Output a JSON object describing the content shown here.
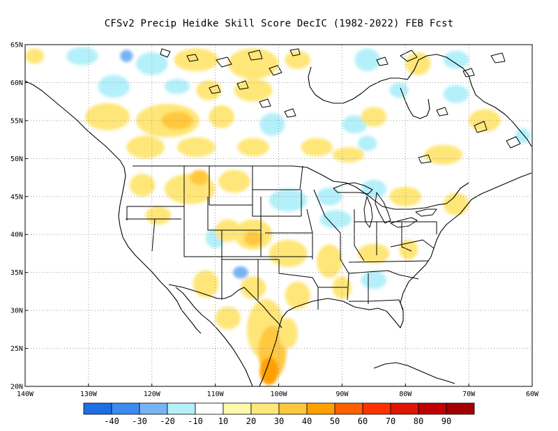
{
  "title": "CFSv2 Precip Heidke Skill Score DecIC (1982-2022) FEB Fcst",
  "map": {
    "lon_range": [
      -140,
      -60
    ],
    "lat_range": [
      20,
      65
    ],
    "lon_ticks": [
      {
        "v": -140,
        "label": "140W"
      },
      {
        "v": -130,
        "label": "130W"
      },
      {
        "v": -120,
        "label": "120W"
      },
      {
        "v": -110,
        "label": "110W"
      },
      {
        "v": -100,
        "label": "100W"
      },
      {
        "v": -90,
        "label": "90W"
      },
      {
        "v": -80,
        "label": "80W"
      },
      {
        "v": -70,
        "label": "70W"
      },
      {
        "v": -60,
        "label": "60W"
      }
    ],
    "lat_ticks": [
      {
        "v": 20,
        "label": "20N"
      },
      {
        "v": 25,
        "label": "25N"
      },
      {
        "v": 30,
        "label": "30N"
      },
      {
        "v": 35,
        "label": "35N"
      },
      {
        "v": 40,
        "label": "40N"
      },
      {
        "v": 45,
        "label": "45N"
      },
      {
        "v": 50,
        "label": "50N"
      },
      {
        "v": 55,
        "label": "55N"
      },
      {
        "v": 60,
        "label": "60N"
      },
      {
        "v": 65,
        "label": "65N"
      }
    ],
    "grid": true
  },
  "colorbar": {
    "colors": [
      "#1e6ee6",
      "#3c8cf0",
      "#78b4f5",
      "#b4f0fa",
      "#ffffff",
      "#fffaaa",
      "#ffe678",
      "#ffc83c",
      "#ffa000",
      "#ff6000",
      "#ff3200",
      "#e11400",
      "#c00000",
      "#a50000"
    ],
    "labels": [
      "-40",
      "-30",
      "-20",
      "-10",
      "10",
      "20",
      "30",
      "40",
      "50",
      "60",
      "70",
      "80",
      "90"
    ]
  },
  "regions": [
    {
      "lon": -138.5,
      "lat": 63.5,
      "rx": 1.5,
      "ry": 1.0,
      "score": 20
    },
    {
      "lon": -131,
      "lat": 63.5,
      "rx": 2.5,
      "ry": 1.2,
      "score": -10
    },
    {
      "lon": -124,
      "lat": 63.5,
      "rx": 1.0,
      "ry": 0.8,
      "score": -20
    },
    {
      "lon": -120,
      "lat": 62.5,
      "rx": 2.5,
      "ry": 1.5,
      "score": -10
    },
    {
      "lon": -113,
      "lat": 63,
      "rx": 3.5,
      "ry": 1.5,
      "score": 20
    },
    {
      "lon": -104,
      "lat": 62.5,
      "rx": 4,
      "ry": 2,
      "score": 20
    },
    {
      "lon": -97,
      "lat": 63,
      "rx": 2,
      "ry": 1.2,
      "score": 20
    },
    {
      "lon": -86,
      "lat": 63,
      "rx": 2,
      "ry": 1.5,
      "score": -10
    },
    {
      "lon": -78,
      "lat": 62.5,
      "rx": 2,
      "ry": 1.5,
      "score": 20
    },
    {
      "lon": -72,
      "lat": 63,
      "rx": 2,
      "ry": 1.2,
      "score": -10
    },
    {
      "lon": -126,
      "lat": 59.5,
      "rx": 2.5,
      "ry": 1.5,
      "score": -10
    },
    {
      "lon": -116,
      "lat": 59.5,
      "rx": 2,
      "ry": 1.0,
      "score": -10
    },
    {
      "lon": -111,
      "lat": 59,
      "rx": 2,
      "ry": 1.3,
      "score": 20
    },
    {
      "lon": -104,
      "lat": 59,
      "rx": 3,
      "ry": 1.5,
      "score": 20
    },
    {
      "lon": -81,
      "lat": 59,
      "rx": 1.5,
      "ry": 1.0,
      "score": -10
    },
    {
      "lon": -72,
      "lat": 58.5,
      "rx": 2,
      "ry": 1.2,
      "score": -10
    },
    {
      "lon": -127,
      "lat": 55.5,
      "rx": 3.5,
      "ry": 1.8,
      "score": 20
    },
    {
      "lon": -117.5,
      "lat": 55,
      "rx": 5,
      "ry": 2.2,
      "score": 20
    },
    {
      "lon": -116,
      "lat": 55,
      "rx": 2.5,
      "ry": 1.2,
      "score": 30
    },
    {
      "lon": -109,
      "lat": 55.5,
      "rx": 2,
      "ry": 1.5,
      "score": 20
    },
    {
      "lon": -101,
      "lat": 54.5,
      "rx": 2,
      "ry": 1.5,
      "score": -10
    },
    {
      "lon": -88,
      "lat": 54.5,
      "rx": 2,
      "ry": 1.2,
      "score": -10
    },
    {
      "lon": -85,
      "lat": 55.5,
      "rx": 2,
      "ry": 1.3,
      "score": 20
    },
    {
      "lon": -67.5,
      "lat": 55,
      "rx": 2.5,
      "ry": 1.5,
      "score": 20
    },
    {
      "lon": -61.5,
      "lat": 53,
      "rx": 1.2,
      "ry": 1.0,
      "score": -10
    },
    {
      "lon": -121,
      "lat": 51.5,
      "rx": 3,
      "ry": 1.5,
      "score": 20
    },
    {
      "lon": -113,
      "lat": 51.5,
      "rx": 3,
      "ry": 1.3,
      "score": 20
    },
    {
      "lon": -104,
      "lat": 51.5,
      "rx": 2.5,
      "ry": 1.2,
      "score": 20
    },
    {
      "lon": -94,
      "lat": 51.5,
      "rx": 2.5,
      "ry": 1.2,
      "score": 20
    },
    {
      "lon": -89,
      "lat": 50.5,
      "rx": 2.5,
      "ry": 1.0,
      "score": 20
    },
    {
      "lon": -86,
      "lat": 52,
      "rx": 1.5,
      "ry": 1.0,
      "score": -10
    },
    {
      "lon": -74,
      "lat": 50.5,
      "rx": 3,
      "ry": 1.3,
      "score": 20
    },
    {
      "lon": -121.5,
      "lat": 46.5,
      "rx": 2,
      "ry": 1.5,
      "score": 20
    },
    {
      "lon": -114,
      "lat": 46,
      "rx": 4,
      "ry": 2,
      "score": 20
    },
    {
      "lon": -112.5,
      "lat": 47.5,
      "rx": 1.5,
      "ry": 1.0,
      "score": 30
    },
    {
      "lon": -107,
      "lat": 47,
      "rx": 2.5,
      "ry": 1.5,
      "score": 20
    },
    {
      "lon": -98.5,
      "lat": 44.5,
      "rx": 3,
      "ry": 1.5,
      "score": -10
    },
    {
      "lon": -92,
      "lat": 45,
      "rx": 2,
      "ry": 1.2,
      "score": -10
    },
    {
      "lon": -91,
      "lat": 42,
      "rx": 2.5,
      "ry": 1.2,
      "score": -10
    },
    {
      "lon": -85,
      "lat": 46,
      "rx": 2,
      "ry": 1.2,
      "score": -10
    },
    {
      "lon": -80,
      "lat": 45,
      "rx": 2.5,
      "ry": 1.3,
      "score": 20
    },
    {
      "lon": -72,
      "lat": 44,
      "rx": 2,
      "ry": 1.5,
      "score": 20
    },
    {
      "lon": -119,
      "lat": 42.5,
      "rx": 2,
      "ry": 1.2,
      "score": 20
    },
    {
      "lon": -110,
      "lat": 39.5,
      "rx": 1.5,
      "ry": 1.3,
      "score": -10
    },
    {
      "lon": -108,
      "lat": 40.5,
      "rx": 2,
      "ry": 1.5,
      "score": 20
    },
    {
      "lon": -104,
      "lat": 40,
      "rx": 3,
      "ry": 2,
      "score": 20
    },
    {
      "lon": -104,
      "lat": 39.5,
      "rx": 1.5,
      "ry": 1.0,
      "score": 30
    },
    {
      "lon": -98.5,
      "lat": 37.5,
      "rx": 3,
      "ry": 1.8,
      "score": 20
    },
    {
      "lon": -92,
      "lat": 36.5,
      "rx": 2,
      "ry": 2.2,
      "score": 20
    },
    {
      "lon": -85,
      "lat": 37.5,
      "rx": 2.5,
      "ry": 1.3,
      "score": 20
    },
    {
      "lon": -79.5,
      "lat": 38,
      "rx": 1.5,
      "ry": 1.3,
      "score": 20
    },
    {
      "lon": -106,
      "lat": 35,
      "rx": 1.2,
      "ry": 0.8,
      "score": -20
    },
    {
      "lon": -104,
      "lat": 33,
      "rx": 2,
      "ry": 1.5,
      "score": 20
    },
    {
      "lon": -111.5,
      "lat": 33.5,
      "rx": 2,
      "ry": 1.8,
      "score": 20
    },
    {
      "lon": -97,
      "lat": 32,
      "rx": 2,
      "ry": 1.8,
      "score": 20
    },
    {
      "lon": -90,
      "lat": 33,
      "rx": 1.5,
      "ry": 1.5,
      "score": 20
    },
    {
      "lon": -85,
      "lat": 34,
      "rx": 2,
      "ry": 1.2,
      "score": -10
    },
    {
      "lon": -108,
      "lat": 29,
      "rx": 2,
      "ry": 1.5,
      "score": 20
    },
    {
      "lon": -102,
      "lat": 27.5,
      "rx": 3,
      "ry": 4,
      "score": 20
    },
    {
      "lon": -101,
      "lat": 24.5,
      "rx": 2.2,
      "ry": 3.5,
      "score": 30
    },
    {
      "lon": -101.5,
      "lat": 22,
      "rx": 1.5,
      "ry": 1.8,
      "score": 40
    },
    {
      "lon": -98.5,
      "lat": 27,
      "rx": 1.5,
      "ry": 2,
      "score": 20
    }
  ]
}
